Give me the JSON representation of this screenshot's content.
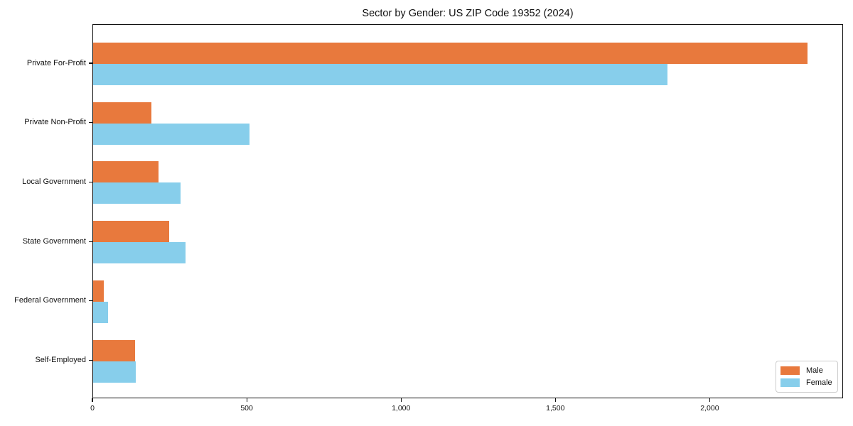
{
  "title": "Sector by Gender: US ZIP Code 19352 (2024)",
  "chart_data": {
    "type": "bar",
    "orientation": "horizontal",
    "title": "Sector by Gender: US ZIP Code 19352 (2024)",
    "xlabel": "",
    "ylabel": "",
    "categories": [
      "Private For-Profit",
      "Private Non-Profit",
      "Local Government",
      "State Government",
      "Federal Government",
      "Self-Employed"
    ],
    "series": [
      {
        "name": "Male",
        "color": "#e8793d",
        "values": [
          2315,
          188,
          211,
          247,
          34,
          137
        ]
      },
      {
        "name": "Female",
        "color": "#87ceeb",
        "values": [
          1860,
          507,
          283,
          300,
          49,
          139
        ]
      }
    ],
    "xlim": [
      0,
      2432
    ],
    "x_ticks": [
      0,
      500,
      1000,
      1500,
      2000
    ],
    "x_tick_labels": [
      "0",
      "500",
      "1,000",
      "1,500",
      "2,000"
    ],
    "grid": false,
    "legend": {
      "position": "lower right",
      "entries": [
        "Male",
        "Female"
      ]
    }
  }
}
